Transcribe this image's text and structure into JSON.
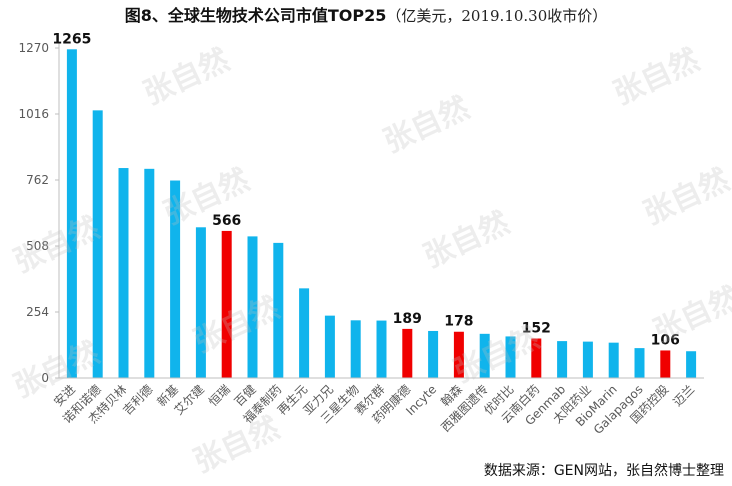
{
  "chart_data": {
    "type": "bar",
    "title": "图8、全球生物技术公司市值TOP25",
    "subtitle": "（亿美元，2019.10.30收市价）",
    "xlabel": "",
    "ylabel": "",
    "ylim": [
      0,
      1270
    ],
    "yticks": [
      0,
      254,
      508,
      762,
      1016,
      1270
    ],
    "categories": [
      "安进",
      "诺和诺德",
      "杰特贝林",
      "吉利德",
      "新基",
      "艾尔建",
      "恒瑞",
      "百健",
      "福泰制药",
      "再生元",
      "亚力兄",
      "三星生物",
      "赛尔群",
      "药明康德",
      "Incyte",
      "翰森",
      "西雅图遗传",
      "优时比",
      "云南白药",
      "Genmab",
      "太阳药业",
      "BioMarin",
      "Galapagos",
      "国药控股",
      "迈兰"
    ],
    "values": [
      1265,
      1030,
      808,
      805,
      760,
      580,
      566,
      545,
      520,
      345,
      240,
      222,
      221,
      189,
      181,
      178,
      170,
      160,
      152,
      142,
      140,
      136,
      115,
      106,
      103
    ],
    "highlight": [
      false,
      false,
      false,
      false,
      false,
      false,
      true,
      false,
      false,
      false,
      false,
      false,
      false,
      true,
      false,
      true,
      false,
      false,
      true,
      false,
      false,
      false,
      false,
      true,
      false
    ],
    "data_labels": [
      {
        "index": 0,
        "text": "1265"
      },
      {
        "index": 6,
        "text": "566"
      },
      {
        "index": 13,
        "text": "189"
      },
      {
        "index": 15,
        "text": "178"
      },
      {
        "index": 18,
        "text": "152"
      },
      {
        "index": 23,
        "text": "106"
      }
    ],
    "grid": false,
    "colors": {
      "bar": "#10B4EC",
      "highlight": "#F00000",
      "axis": "#BFBFBF",
      "text": "#595959"
    }
  },
  "source": "数据来源：GEN网站，张自然博士整理",
  "watermark": "张自然"
}
